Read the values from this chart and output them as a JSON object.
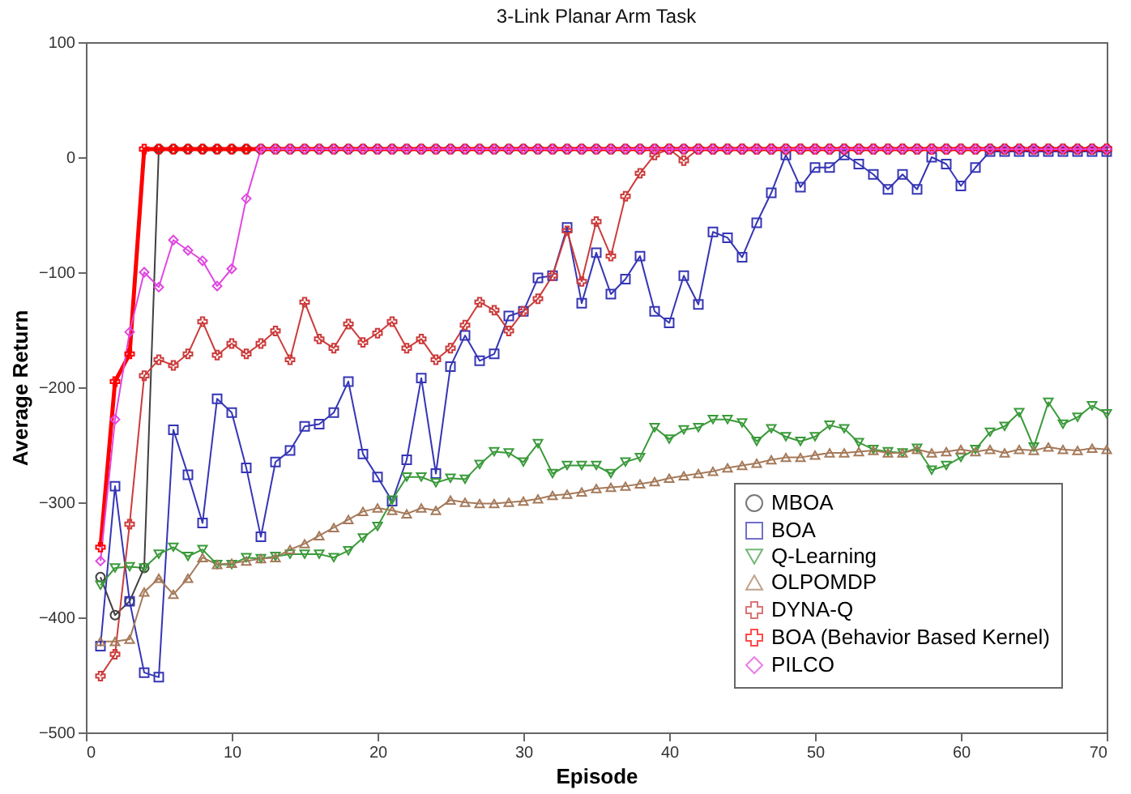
{
  "chart_data": {
    "type": "line",
    "title": "3-Link Planar Arm Task",
    "xlabel": "Episode",
    "ylabel": "Average Return",
    "x": [
      1,
      2,
      3,
      4,
      5,
      6,
      7,
      8,
      9,
      10,
      11,
      12,
      13,
      14,
      15,
      16,
      17,
      18,
      19,
      20,
      21,
      22,
      23,
      24,
      25,
      26,
      27,
      28,
      29,
      30,
      31,
      32,
      33,
      34,
      35,
      36,
      37,
      38,
      39,
      40,
      41,
      42,
      43,
      44,
      45,
      46,
      47,
      48,
      49,
      50,
      51,
      52,
      53,
      54,
      55,
      56,
      57,
      58,
      59,
      60,
      61,
      62,
      63,
      64,
      65,
      66,
      67,
      68,
      69,
      70
    ],
    "xlim": [
      0,
      70
    ],
    "xticks": [
      0,
      10,
      20,
      30,
      40,
      50,
      60,
      70
    ],
    "ylim": [
      -500,
      100
    ],
    "yticks": [
      -500,
      -400,
      -300,
      -200,
      -100,
      0,
      100
    ],
    "grid": false,
    "legend": "bottom right",
    "line_style": "solid",
    "series": [
      {
        "name": "MBOA",
        "color": "#404040",
        "marker": "circle",
        "values": [
          -365,
          -398,
          -386,
          -357,
          7,
          7,
          7,
          7,
          7,
          7,
          7,
          7,
          7,
          7,
          7,
          7,
          7,
          7,
          7,
          7,
          7,
          7,
          7,
          7,
          7,
          7,
          7,
          7,
          7,
          7,
          7,
          7,
          7,
          7,
          7,
          7,
          7,
          7,
          7,
          7,
          7,
          7,
          7,
          7,
          7,
          7,
          7,
          7,
          7,
          7,
          7,
          7,
          7,
          7,
          7,
          7,
          7,
          7,
          7,
          7,
          7,
          7,
          7,
          7,
          7,
          7,
          7,
          7,
          7,
          7
        ]
      },
      {
        "name": "BOA",
        "color": "#3535b5",
        "marker": "square",
        "values": [
          -425,
          -286,
          -386,
          -448,
          -452,
          -237,
          -276,
          -318,
          -210,
          -222,
          -270,
          -330,
          -265,
          -255,
          -234,
          -232,
          -222,
          -195,
          -258,
          -278,
          -299,
          -263,
          -192,
          -275,
          -182,
          -155,
          -177,
          -171,
          -138,
          -134,
          -105,
          -103,
          -61,
          -127,
          -83,
          -119,
          -106,
          -86,
          -134,
          -144,
          -103,
          -128,
          -65,
          -70,
          -87,
          -57,
          -31,
          2,
          -26,
          -9,
          -9,
          2,
          -6,
          -15,
          -28,
          -15,
          -28,
          0,
          -6,
          -25,
          -9,
          5,
          5,
          5,
          5,
          5,
          5,
          5,
          5,
          5
        ]
      },
      {
        "name": "Q-Learning",
        "color": "#3a9a3a",
        "marker": "triangle-down",
        "values": [
          -372,
          -357,
          -356,
          -357,
          -345,
          -339,
          -347,
          -341,
          -354,
          -354,
          -348,
          -349,
          -347,
          -345,
          -345,
          -345,
          -348,
          -342,
          -331,
          -321,
          -298,
          -278,
          -278,
          -283,
          -279,
          -280,
          -267,
          -256,
          -257,
          -265,
          -249,
          -275,
          -268,
          -268,
          -268,
          -275,
          -265,
          -261,
          -235,
          -245,
          -237,
          -235,
          -228,
          -228,
          -231,
          -247,
          -236,
          -243,
          -247,
          -243,
          -233,
          -236,
          -248,
          -254,
          -256,
          -257,
          -253,
          -272,
          -268,
          -261,
          -254,
          -239,
          -234,
          -222,
          -252,
          -213,
          -232,
          -226,
          -216,
          -223
        ]
      },
      {
        "name": "OLPOMDP",
        "color": "#a57a5a",
        "marker": "triangle",
        "values": [
          -421,
          -421,
          -419,
          -378,
          -366,
          -380,
          -366,
          -348,
          -354,
          -353,
          -351,
          -349,
          -348,
          -341,
          -336,
          -329,
          -322,
          -315,
          -308,
          -305,
          -307,
          -310,
          -305,
          -307,
          -298,
          -300,
          -301,
          -301,
          -300,
          -299,
          -297,
          -294,
          -293,
          -291,
          -288,
          -287,
          -286,
          -284,
          -282,
          -279,
          -277,
          -275,
          -273,
          -270,
          -268,
          -266,
          -263,
          -261,
          -261,
          -259,
          -257,
          -257,
          -256,
          -255,
          -257,
          -257,
          -254,
          -257,
          -256,
          -254,
          -256,
          -254,
          -257,
          -254,
          -255,
          -252,
          -254,
          -255,
          -253,
          -254
        ]
      },
      {
        "name": "DYNA-Q",
        "color": "#cc3b3b",
        "marker": "cross",
        "values": [
          -451,
          -432,
          -319,
          -190,
          -176,
          -181,
          -171,
          -143,
          -172,
          -162,
          -171,
          -162,
          -151,
          -176,
          -126,
          -158,
          -166,
          -145,
          -161,
          -153,
          -143,
          -166,
          -158,
          -176,
          -166,
          -146,
          -126,
          -133,
          -151,
          -134,
          -123,
          -103,
          -64,
          -108,
          -56,
          -86,
          -34,
          -14,
          2,
          7,
          -3,
          7,
          7,
          7,
          7,
          7,
          7,
          7,
          7,
          7,
          7,
          7,
          7,
          7,
          7,
          7,
          7,
          7,
          7,
          7,
          7,
          7,
          7,
          7,
          7,
          7,
          7,
          7,
          7,
          7
        ]
      },
      {
        "name": "BOA (Behavior Based Kernel)",
        "color": "#ff0000",
        "marker": "cross",
        "values": [
          -339,
          -195,
          -171,
          7,
          7,
          7,
          7,
          7,
          7,
          7,
          7,
          7,
          7,
          7,
          7,
          7,
          7,
          7,
          7,
          7,
          7,
          7,
          7,
          7,
          7,
          7,
          7,
          7,
          7,
          7,
          7,
          7,
          7,
          7,
          7,
          7,
          7,
          7,
          7,
          7,
          7,
          7,
          7,
          7,
          7,
          7,
          7,
          7,
          7,
          7,
          7,
          7,
          7,
          7,
          7,
          7,
          7,
          7,
          7,
          7,
          7,
          7,
          7,
          7,
          7,
          7,
          7,
          7,
          7,
          7
        ]
      },
      {
        "name": "PILCO",
        "color": "#e048e0",
        "marker": "diamond",
        "values": [
          -351,
          -228,
          -152,
          -100,
          -113,
          -72,
          -81,
          -90,
          -112,
          -97,
          -36,
          7,
          7,
          7,
          7,
          7,
          7,
          7,
          7,
          7,
          7,
          7,
          7,
          7,
          7,
          7,
          7,
          7,
          7,
          7,
          7,
          7,
          7,
          7,
          7,
          7,
          7,
          7,
          7,
          7,
          7,
          7,
          7,
          7,
          7,
          7,
          7,
          7,
          7,
          7,
          7,
          7,
          7,
          7,
          7,
          7,
          7,
          7,
          7,
          7,
          7,
          7,
          7,
          7,
          7,
          7,
          7,
          7,
          7,
          7
        ]
      }
    ]
  }
}
